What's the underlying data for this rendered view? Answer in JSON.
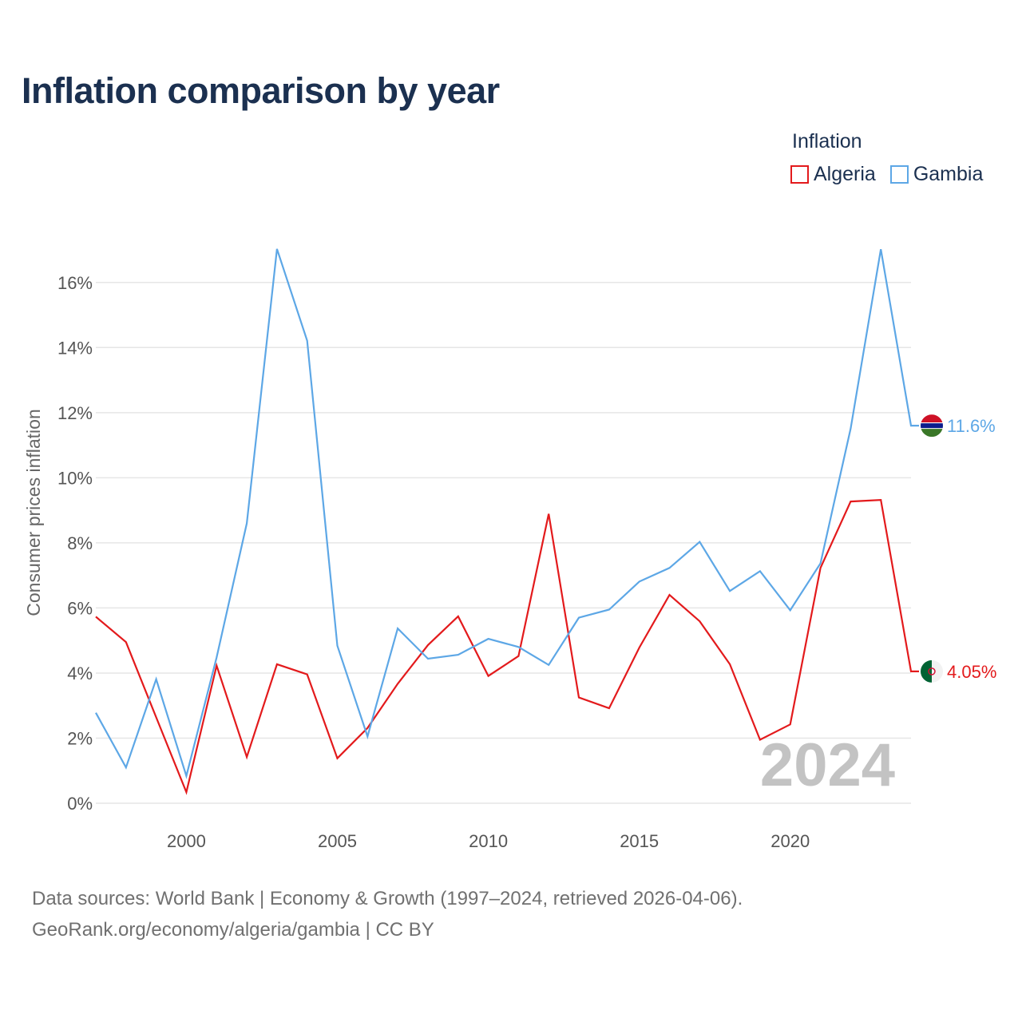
{
  "title": "Inflation comparison by year",
  "legend": {
    "title": "Inflation",
    "items": [
      {
        "name": "Algeria",
        "color": "#e31a1c"
      },
      {
        "name": "Gambia",
        "color": "#5da7e6"
      }
    ]
  },
  "watermark_year": "2024",
  "footer": {
    "line1": "Data sources: World Bank | Economy & Growth (1997–2024, retrieved 2026-04-06).",
    "line2": "GeoRank.org/economy/algeria/gambia | CC BY"
  },
  "chart_data": {
    "type": "line",
    "title": "Inflation comparison by year",
    "xlabel": "",
    "ylabel": "Consumer prices inflation",
    "xlim": [
      1997,
      2024
    ],
    "ylim": [
      0,
      17
    ],
    "grid": true,
    "x_ticks": [
      2000,
      2005,
      2010,
      2015,
      2020
    ],
    "y_ticks": [
      0,
      2,
      4,
      6,
      8,
      10,
      12,
      14,
      16
    ],
    "y_tick_labels": [
      "0%",
      "2%",
      "4%",
      "6%",
      "8%",
      "10%",
      "12%",
      "14%",
      "16%"
    ],
    "x": [
      1997,
      1998,
      1999,
      2000,
      2001,
      2002,
      2003,
      2004,
      2005,
      2006,
      2007,
      2008,
      2009,
      2010,
      2011,
      2012,
      2013,
      2014,
      2015,
      2016,
      2017,
      2018,
      2019,
      2020,
      2021,
      2022,
      2023,
      2024
    ],
    "series": [
      {
        "name": "Algeria",
        "color": "#e31a1c",
        "end_label": "4.05%",
        "values": [
          5.73,
          4.95,
          2.64,
          0.34,
          4.23,
          1.42,
          4.27,
          3.96,
          1.38,
          2.31,
          3.67,
          4.86,
          5.74,
          3.91,
          4.52,
          8.89,
          3.25,
          2.92,
          4.78,
          6.4,
          5.59,
          4.27,
          1.95,
          2.42,
          7.23,
          9.27,
          9.32,
          4.05
        ]
      },
      {
        "name": "Gambia",
        "color": "#5da7e6",
        "end_label": "11.6%",
        "values": [
          2.78,
          1.1,
          3.81,
          0.84,
          4.48,
          8.6,
          17.03,
          14.21,
          4.84,
          2.05,
          5.37,
          4.44,
          4.56,
          5.05,
          4.8,
          4.25,
          5.7,
          5.95,
          6.81,
          7.23,
          8.03,
          6.52,
          7.13,
          5.93,
          7.37,
          11.51,
          17.02,
          11.6
        ]
      }
    ]
  }
}
